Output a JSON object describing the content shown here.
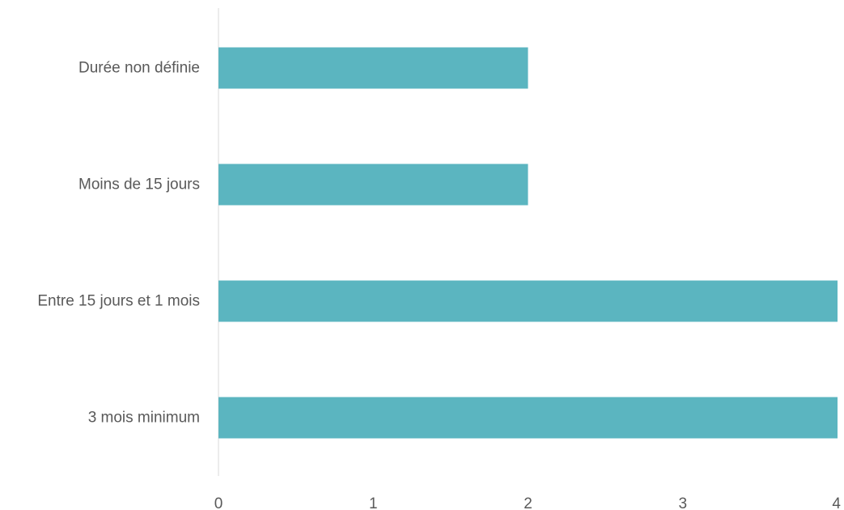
{
  "chart_data": {
    "type": "bar",
    "orientation": "horizontal",
    "title": "",
    "xlabel": "",
    "ylabel": "",
    "categories": [
      "Durée non définie",
      "Moins de 15 jours",
      "Entre 15 jours et 1 mois",
      "3 mois minimum"
    ],
    "values": [
      2,
      2,
      4,
      4
    ],
    "xlim": [
      0,
      4
    ],
    "xticks": [
      "0",
      "1",
      "2",
      "3",
      "4"
    ],
    "bar_color": "#5BB5C0",
    "axis_color": "#D9D9D9",
    "label_color": "#595959",
    "grid": false,
    "legend": "none"
  }
}
